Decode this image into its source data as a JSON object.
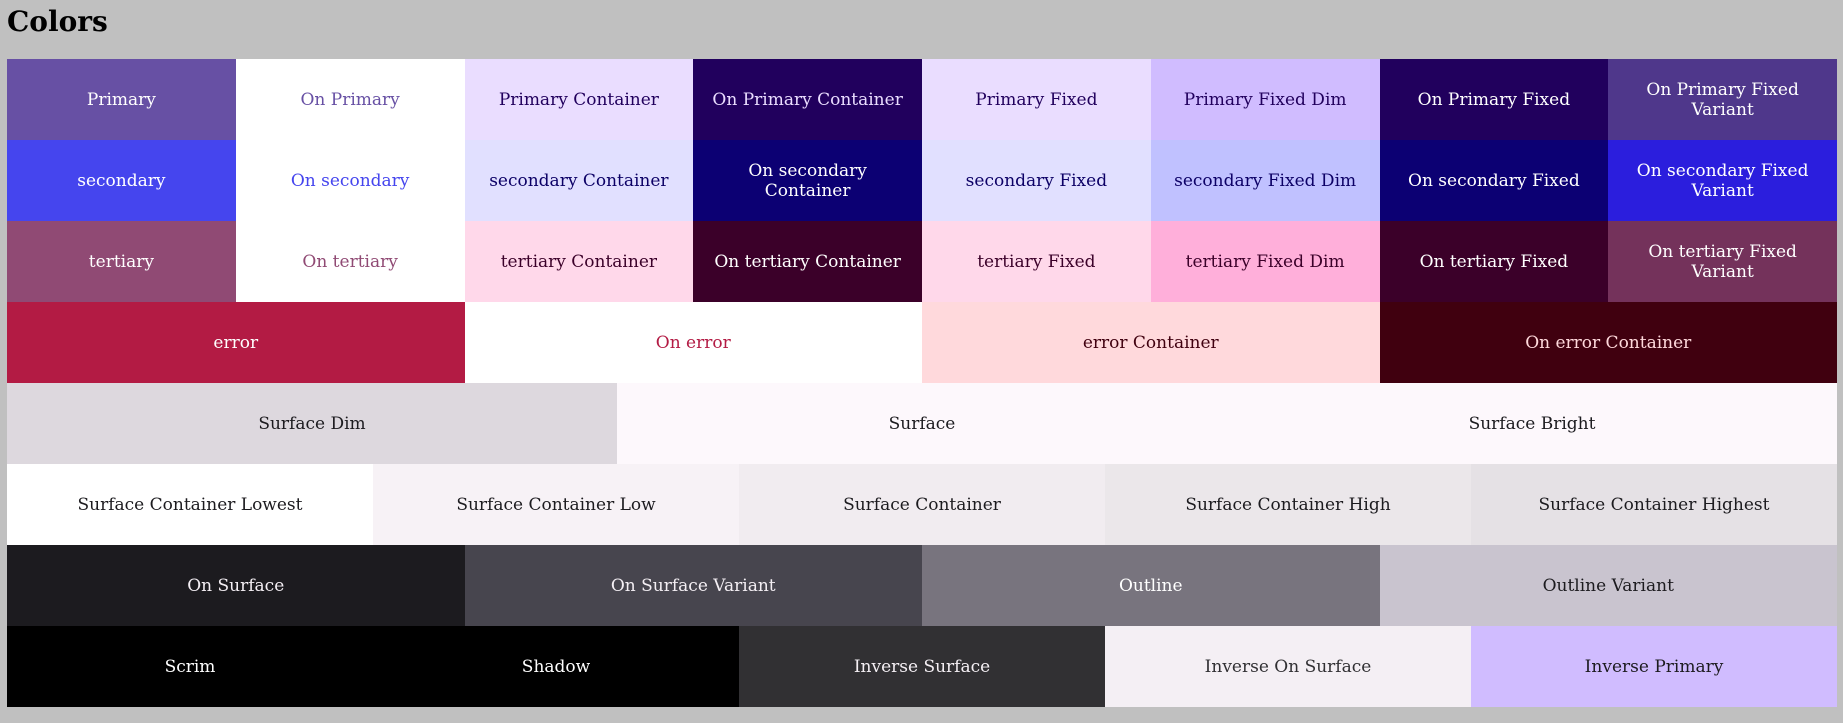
{
  "page": {
    "title": "Colors",
    "background": "#c0c0c0"
  },
  "rows": [
    {
      "name": "primary-row",
      "cells": [
        {
          "name": "primary",
          "label": "Primary",
          "bg": "#6750a4",
          "fg": "#ffffff"
        },
        {
          "name": "on-primary",
          "label": "On Primary",
          "bg": "#ffffff",
          "fg": "#6750a4"
        },
        {
          "name": "primary-container",
          "label": "Primary Container",
          "bg": "#eaddff",
          "fg": "#21005d"
        },
        {
          "name": "on-primary-container",
          "label": "On Primary Container",
          "bg": "#21005d",
          "fg": "#eaddff"
        },
        {
          "name": "primary-fixed",
          "label": "Primary Fixed",
          "bg": "#eaddff",
          "fg": "#21005d"
        },
        {
          "name": "primary-fixed-dim",
          "label": "Primary Fixed Dim",
          "bg": "#d0bcff",
          "fg": "#21005d"
        },
        {
          "name": "on-primary-fixed",
          "label": "On Primary Fixed",
          "bg": "#21005d",
          "fg": "#ffffff"
        },
        {
          "name": "on-primary-fixed-variant",
          "label": "On Primary Fixed Variant",
          "bg": "#4f378b",
          "fg": "#ffffff"
        }
      ]
    },
    {
      "name": "secondary-row",
      "cells": [
        {
          "name": "secondary",
          "label": "secondary",
          "bg": "#4545ee",
          "fg": "#ffffff"
        },
        {
          "name": "on-secondary",
          "label": "On secondary",
          "bg": "#ffffff",
          "fg": "#4545ee"
        },
        {
          "name": "secondary-container",
          "label": "secondary Container",
          "bg": "#e1e0ff",
          "fg": "#0c0066"
        },
        {
          "name": "on-secondary-container",
          "label": "On secondary Container",
          "bg": "#0c0073",
          "fg": "#ffffff"
        },
        {
          "name": "secondary-fixed",
          "label": "secondary Fixed",
          "bg": "#e1e0ff",
          "fg": "#0c0066"
        },
        {
          "name": "secondary-fixed-dim",
          "label": "secondary Fixed Dim",
          "bg": "#c0c1ff",
          "fg": "#0c0066"
        },
        {
          "name": "on-secondary-fixed",
          "label": "On secondary Fixed",
          "bg": "#0c0073",
          "fg": "#ffffff"
        },
        {
          "name": "on-secondary-fixed-variant",
          "label": "On secondary Fixed Variant",
          "bg": "#2b1edd",
          "fg": "#ffffff"
        }
      ]
    },
    {
      "name": "tertiary-row",
      "cells": [
        {
          "name": "tertiary",
          "label": "tertiary",
          "bg": "#904a74",
          "fg": "#ffffff"
        },
        {
          "name": "on-tertiary",
          "label": "On tertiary",
          "bg": "#ffffff",
          "fg": "#904a74"
        },
        {
          "name": "tertiary-container",
          "label": "tertiary Container",
          "bg": "#ffd8ea",
          "fg": "#3b0029"
        },
        {
          "name": "on-tertiary-container",
          "label": "On tertiary Container",
          "bg": "#3b0029",
          "fg": "#ffffff"
        },
        {
          "name": "tertiary-fixed",
          "label": "tertiary Fixed",
          "bg": "#ffd8ea",
          "fg": "#3b0029"
        },
        {
          "name": "tertiary-fixed-dim",
          "label": "tertiary Fixed Dim",
          "bg": "#ffafda",
          "fg": "#3b0029"
        },
        {
          "name": "on-tertiary-fixed",
          "label": "On tertiary Fixed",
          "bg": "#3b0029",
          "fg": "#ffffff"
        },
        {
          "name": "on-tertiary-fixed-variant",
          "label": "On tertiary Fixed Variant",
          "bg": "#74325b",
          "fg": "#ffffff"
        }
      ]
    },
    {
      "name": "error-row",
      "cells": [
        {
          "name": "error",
          "label": "error",
          "bg": "#b31b44",
          "fg": "#ffffff"
        },
        {
          "name": "on-error",
          "label": "On error",
          "bg": "#ffffff",
          "fg": "#b31b44"
        },
        {
          "name": "error-container",
          "label": "error Container",
          "bg": "#ffd9dc",
          "fg": "#40000f"
        },
        {
          "name": "on-error-container",
          "label": "On error Container",
          "bg": "#40000f",
          "fg": "#ffd9dc"
        }
      ]
    },
    {
      "name": "surface-row",
      "cells": [
        {
          "name": "surface-dim",
          "label": "Surface Dim",
          "bg": "#ddd8de",
          "fg": "#1c1b1f"
        },
        {
          "name": "surface",
          "label": "Surface",
          "bg": "#fdf8fc",
          "fg": "#1c1b1f"
        },
        {
          "name": "surface-bright",
          "label": "Surface Bright",
          "bg": "#fdf8fc",
          "fg": "#1c1b1f"
        }
      ]
    },
    {
      "name": "surface-container-row",
      "cells": [
        {
          "name": "surface-container-lowest",
          "label": "Surface Container Lowest",
          "bg": "#ffffff",
          "fg": "#1c1b1f"
        },
        {
          "name": "surface-container-low",
          "label": "Surface Container Low",
          "bg": "#f7f2f6",
          "fg": "#1c1b1f"
        },
        {
          "name": "surface-container",
          "label": "Surface Container",
          "bg": "#f1ecf0",
          "fg": "#1c1b1f"
        },
        {
          "name": "surface-container-high",
          "label": "Surface Container High",
          "bg": "#ebe7ea",
          "fg": "#1c1b1f"
        },
        {
          "name": "surface-container-highest",
          "label": "Surface Container Highest",
          "bg": "#e5e1e5",
          "fg": "#1c1b1f"
        }
      ]
    },
    {
      "name": "on-surface-row",
      "cells": [
        {
          "name": "on-surface",
          "label": "On Surface",
          "bg": "#1c1b1f",
          "fg": "#f4eff4"
        },
        {
          "name": "on-surface-variant",
          "label": "On Surface Variant",
          "bg": "#47454e",
          "fg": "#f4eff4"
        },
        {
          "name": "outline",
          "label": "Outline",
          "bg": "#78747e",
          "fg": "#ffffff"
        },
        {
          "name": "outline-variant",
          "label": "Outline Variant",
          "bg": "#c9c4cf",
          "fg": "#1c1b1f"
        }
      ]
    },
    {
      "name": "inverse-row",
      "cells": [
        {
          "name": "scrim",
          "label": "Scrim",
          "bg": "#000000",
          "fg": "#ffffff"
        },
        {
          "name": "shadow",
          "label": "Shadow",
          "bg": "#000000",
          "fg": "#ffffff"
        },
        {
          "name": "inverse-surface",
          "label": "Inverse Surface",
          "bg": "#313033",
          "fg": "#f4eff4"
        },
        {
          "name": "inverse-on-surface",
          "label": "Inverse On Surface",
          "bg": "#f4eff4",
          "fg": "#313033"
        },
        {
          "name": "inverse-primary",
          "label": "Inverse Primary",
          "bg": "#d0bcff",
          "fg": "#1c1b1f"
        }
      ]
    }
  ]
}
